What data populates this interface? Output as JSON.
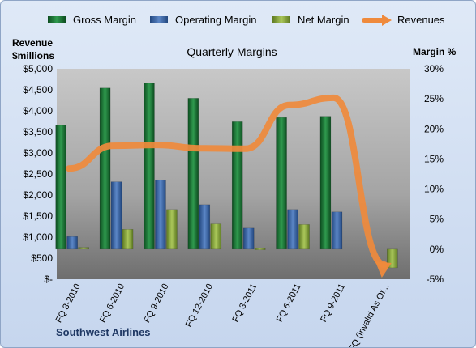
{
  "chart_data": {
    "type": "bar",
    "title": "Quarterly Margins",
    "company": "Southwest Airlines",
    "ylabel_left_line1": "Revenue",
    "ylabel_left_line2": "$millions",
    "ylabel_right": "Margin %",
    "categories": [
      "FQ 3-2010",
      "FQ 6-2010",
      "FQ 9-2010",
      "FQ 12-2010",
      "FQ 3-2011",
      "FQ 6-2011",
      "FQ 9-2011",
      "FQ (Invalid As Of..."
    ],
    "left_axis": {
      "min": 0,
      "max": 5000,
      "step": 500,
      "tick_labels": [
        "$-",
        "$500",
        "$1,000",
        "$1,500",
        "$2,000",
        "$2,500",
        "$3,000",
        "$3,500",
        "$4,000",
        "$4,500",
        "$5,000"
      ]
    },
    "right_axis": {
      "min": -5,
      "max": 30,
      "step": 5,
      "tick_labels": [
        "-5%",
        "0%",
        "5%",
        "10%",
        "15%",
        "20%",
        "25%",
        "30%"
      ]
    },
    "series": [
      {
        "name": "Gross Margin",
        "axis": "right",
        "kind": "bar",
        "color": "#1f7a3a",
        "values": [
          20.6,
          26.8,
          27.6,
          25.1,
          21.2,
          21.9,
          22.1,
          null
        ]
      },
      {
        "name": "Operating Margin",
        "axis": "right",
        "kind": "bar",
        "color": "#3d6aac",
        "values": [
          2.1,
          11.2,
          11.5,
          7.4,
          3.5,
          6.6,
          6.2,
          null
        ]
      },
      {
        "name": "Net Margin",
        "axis": "right",
        "kind": "bar",
        "color": "#8fae3e",
        "values": [
          0.3,
          3.3,
          6.6,
          4.2,
          0.1,
          4.1,
          null,
          -3.1
        ]
      },
      {
        "name": "Revenues",
        "axis": "left",
        "kind": "line",
        "color": "#ef8a3c",
        "values": [
          2630,
          3170,
          3190,
          3110,
          3100,
          4140,
          4310,
          0
        ]
      }
    ],
    "legend_position": "top",
    "grid": false
  }
}
